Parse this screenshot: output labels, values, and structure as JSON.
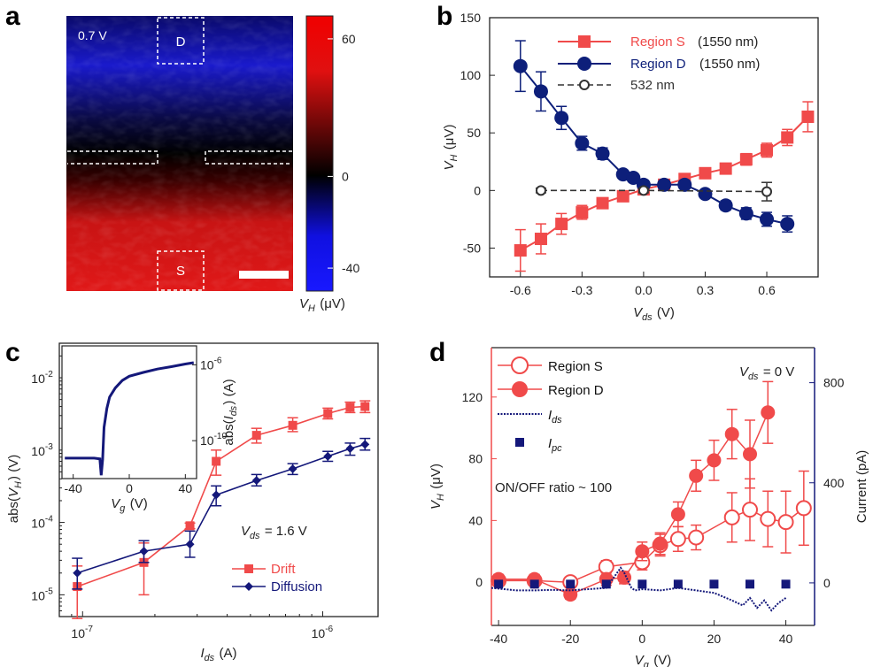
{
  "colors": {
    "red": "#f04a4a",
    "blue": "#0d1f7a",
    "darkblue": "#14187a",
    "gray": "#333333"
  },
  "chart_data": [
    {
      "id": "a",
      "type": "heatmap",
      "panel_label": "a",
      "annotation": "0.7 V",
      "region_labels": [
        "D",
        "S"
      ],
      "colorbar": {
        "label": "V_H (μV)",
        "ticks": [
          60,
          0,
          -40
        ],
        "range": [
          -50,
          70
        ],
        "colormap": [
          "#1a1aff",
          "#000000",
          "#ff1a1a"
        ]
      }
    },
    {
      "id": "b",
      "type": "line",
      "panel_label": "b",
      "xlabel": "V_ds (V)",
      "ylabel": "V_H (μV)",
      "xlim": [
        -0.75,
        0.85
      ],
      "ylim": [
        -75,
        150
      ],
      "xticks": [
        "-0.6",
        "-0.3",
        "0.0",
        "0.3",
        "0.6"
      ],
      "xtick_values": [
        -0.6,
        -0.3,
        0.0,
        0.3,
        0.6
      ],
      "yticks": [
        "-50",
        "0",
        "50",
        "100",
        "150"
      ],
      "ytick_values": [
        -50,
        0,
        50,
        100,
        150
      ],
      "legend_position": "top-right",
      "series": [
        {
          "name": "Region S",
          "note": "(1550 nm)",
          "color": "#f04a4a",
          "marker": "square",
          "x": [
            -0.6,
            -0.5,
            -0.4,
            -0.3,
            -0.2,
            -0.1,
            0.0,
            0.1,
            0.2,
            0.3,
            0.4,
            0.5,
            0.6,
            0.7,
            0.8
          ],
          "y": [
            -52,
            -42,
            -29,
            -19,
            -11,
            -5,
            1,
            5,
            10,
            15,
            19,
            27,
            35,
            46,
            64
          ],
          "err": [
            18,
            13,
            9,
            6,
            4,
            3,
            2,
            2,
            3,
            3,
            4,
            5,
            6,
            7,
            13
          ]
        },
        {
          "name": "Region D",
          "note": "(1550 nm)",
          "color": "#0d1f7a",
          "marker": "circle",
          "x": [
            -0.6,
            -0.5,
            -0.4,
            -0.3,
            -0.2,
            -0.1,
            -0.05,
            0.0,
            0.1,
            0.2,
            0.3,
            0.4,
            0.5,
            0.6,
            0.7
          ],
          "y": [
            108,
            86,
            63,
            41,
            32,
            14,
            11,
            5,
            5,
            5,
            -3,
            -13,
            -20,
            -25,
            -29
          ],
          "err": [
            22,
            17,
            10,
            6,
            5,
            3,
            3,
            3,
            3,
            3,
            3,
            4,
            5,
            6,
            7
          ]
        },
        {
          "name": "532 nm",
          "color": "#333333",
          "marker": "open-circle",
          "dashed": true,
          "x": [
            -0.5,
            0.0,
            0.6
          ],
          "y": [
            0,
            0,
            -1
          ],
          "err": [
            2,
            2,
            8
          ]
        }
      ]
    },
    {
      "id": "c",
      "type": "line",
      "panel_label": "c",
      "xscale": "log",
      "yscale": "log",
      "xlabel": "I_ds (A)",
      "ylabel": "abs(V_H) (V)",
      "xlim": [
        8e-08,
        1.7e-06
      ],
      "ylim": [
        5e-06,
        0.03
      ],
      "xticks": [
        "10^-7",
        "10^-6"
      ],
      "xtick_values": [
        1e-07,
        1e-06
      ],
      "yticks": [
        "10^-5",
        "10^-4",
        "10^-3",
        "10^-2"
      ],
      "ytick_values": [
        1e-05,
        0.0001,
        0.001,
        0.01
      ],
      "annotation": "V_ds = 1.6 V",
      "legend_position": "bottom-right",
      "series": [
        {
          "name": "Drift",
          "color": "#f04a4a",
          "marker": "square",
          "x": [
            9.5e-08,
            1.8e-07,
            2.8e-07,
            3.6e-07,
            5.3e-07,
            7.5e-07,
            1.05e-06,
            1.3e-06,
            1.5e-06
          ],
          "y": [
            1.3e-05,
            2.8e-05,
            9e-05,
            0.0007,
            0.0016,
            0.0022,
            0.0032,
            0.0039,
            0.004
          ],
          "err_lo": [
            4.7e-06,
            1e-05,
            8.2e-05,
            0.00045,
            0.00125,
            0.0018,
            0.0027,
            0.0033,
            0.0033
          ],
          "err_hi": [
            2.5e-05,
            5.2e-05,
            9.8e-05,
            0.001,
            0.002,
            0.0028,
            0.0038,
            0.0046,
            0.0048
          ]
        },
        {
          "name": "Diffusion",
          "color": "#14187a",
          "marker": "diamond",
          "x": [
            9.5e-08,
            1.8e-07,
            2.8e-07,
            3.6e-07,
            5.3e-07,
            7.5e-07,
            1.05e-06,
            1.3e-06,
            1.5e-06
          ],
          "y": [
            2e-05,
            4e-05,
            5e-05,
            0.00024,
            0.00038,
            0.00055,
            0.00082,
            0.00105,
            0.0012
          ],
          "err_lo": [
            1.2e-05,
            2.8e-05,
            3.3e-05,
            0.00017,
            0.00032,
            0.00046,
            0.0007,
            0.00085,
            0.001
          ],
          "err_hi": [
            3.2e-05,
            5.6e-05,
            7.6e-05,
            0.00032,
            0.00046,
            0.00065,
            0.00096,
            0.00125,
            0.00145
          ]
        }
      ],
      "inset": {
        "type": "line",
        "yscale": "log",
        "xlabel": "V_g (V)",
        "ylabel": "abs(I_ds) (A)",
        "xlim": [
          -48,
          48
        ],
        "ylim": [
          1e-12,
          1e-05
        ],
        "xticks": [
          "-40",
          "0",
          "40"
        ],
        "xtick_values": [
          -40,
          0,
          40
        ],
        "yticks": [
          "10^-6",
          "10^-10"
        ],
        "ytick_values": [
          1e-06,
          1e-10
        ],
        "color": "#14187a",
        "x": [
          -46,
          -35,
          -25,
          -21,
          -20,
          -19,
          -18,
          -16,
          -14,
          -10,
          -5,
          0,
          10,
          20,
          30,
          40,
          46
        ],
        "y": [
          1.2e-11,
          1.2e-11,
          1.2e-11,
          1.1e-11,
          1.5e-12,
          1e-11,
          5e-10,
          5e-09,
          2e-08,
          6e-08,
          1.5e-07,
          2.5e-07,
          4e-07,
          6e-07,
          8e-07,
          1.1e-06,
          1.3e-06
        ]
      }
    },
    {
      "id": "d",
      "type": "line",
      "panel_label": "d",
      "xlabel": "V_g (V)",
      "ylabel": "V_H (μV)",
      "ylabel_right": "Current (pA)",
      "xlim": [
        -42,
        48
      ],
      "ylim": [
        -28,
        152
      ],
      "ylim_right": [
        -170,
        940
      ],
      "xticks": [
        "-40",
        "-20",
        "0",
        "20",
        "40"
      ],
      "xtick_values": [
        -40,
        -20,
        0,
        20,
        40
      ],
      "yticks": [
        "0",
        "40",
        "80",
        "120"
      ],
      "ytick_values": [
        0,
        40,
        80,
        120
      ],
      "yticks_right": [
        "0",
        "400",
        "800"
      ],
      "ytick_values_right": [
        0,
        400,
        800
      ],
      "annotation": "V_ds = 0 V",
      "annotation_2": "ON/OFF ratio ~ 100",
      "legend_position": "top-left",
      "series": [
        {
          "name": "Region S",
          "color": "#f04a4a",
          "marker": "open-circle",
          "axis": "left",
          "x": [
            -40,
            -30,
            -20,
            -10,
            0,
            5,
            10,
            15,
            25,
            30,
            35,
            40,
            45
          ],
          "y": [
            1,
            1,
            0,
            10,
            13,
            24,
            28,
            29,
            42,
            47,
            41,
            39,
            48
          ],
          "err": [
            3,
            3,
            3,
            4,
            5,
            7,
            8,
            8,
            16,
            20,
            18,
            20,
            24
          ]
        },
        {
          "name": "Region D",
          "color": "#f04a4a",
          "marker": "filled-circle",
          "axis": "left",
          "x": [
            -40,
            -30,
            -20,
            -10,
            -5,
            0,
            5,
            10,
            15,
            20,
            25,
            30,
            35
          ],
          "y": [
            2,
            2,
            -8,
            2,
            3,
            20,
            25,
            44,
            69,
            79,
            96,
            83,
            110
          ],
          "err": [
            3,
            3,
            3,
            4,
            4,
            6,
            7,
            8,
            10,
            13,
            16,
            22,
            20
          ]
        },
        {
          "name": "I_ds",
          "color": "#14187a",
          "marker": "none",
          "dashed": true,
          "axis": "right",
          "x": [
            -42,
            -35,
            -30,
            -25,
            -20,
            -15,
            -10,
            -8,
            -6,
            -5,
            -4,
            -3,
            -2,
            0,
            5,
            10,
            15,
            20,
            25,
            28,
            30,
            32,
            34,
            36,
            38,
            40
          ],
          "y": [
            -20,
            -30,
            -30,
            -28,
            -30,
            -25,
            -20,
            20,
            60,
            40,
            10,
            -20,
            -30,
            -25,
            -30,
            -20,
            -30,
            -40,
            -70,
            -90,
            -60,
            -100,
            -70,
            -110,
            -80,
            -60
          ]
        },
        {
          "name": "I_pc",
          "color": "#14187a",
          "marker": "filled-square",
          "axis": "right",
          "x": [
            -40,
            -30,
            -20,
            -10,
            0,
            10,
            20,
            30,
            40
          ],
          "y": [
            -5,
            -5,
            -5,
            -5,
            -5,
            -5,
            -5,
            -5,
            -5
          ]
        }
      ]
    }
  ]
}
